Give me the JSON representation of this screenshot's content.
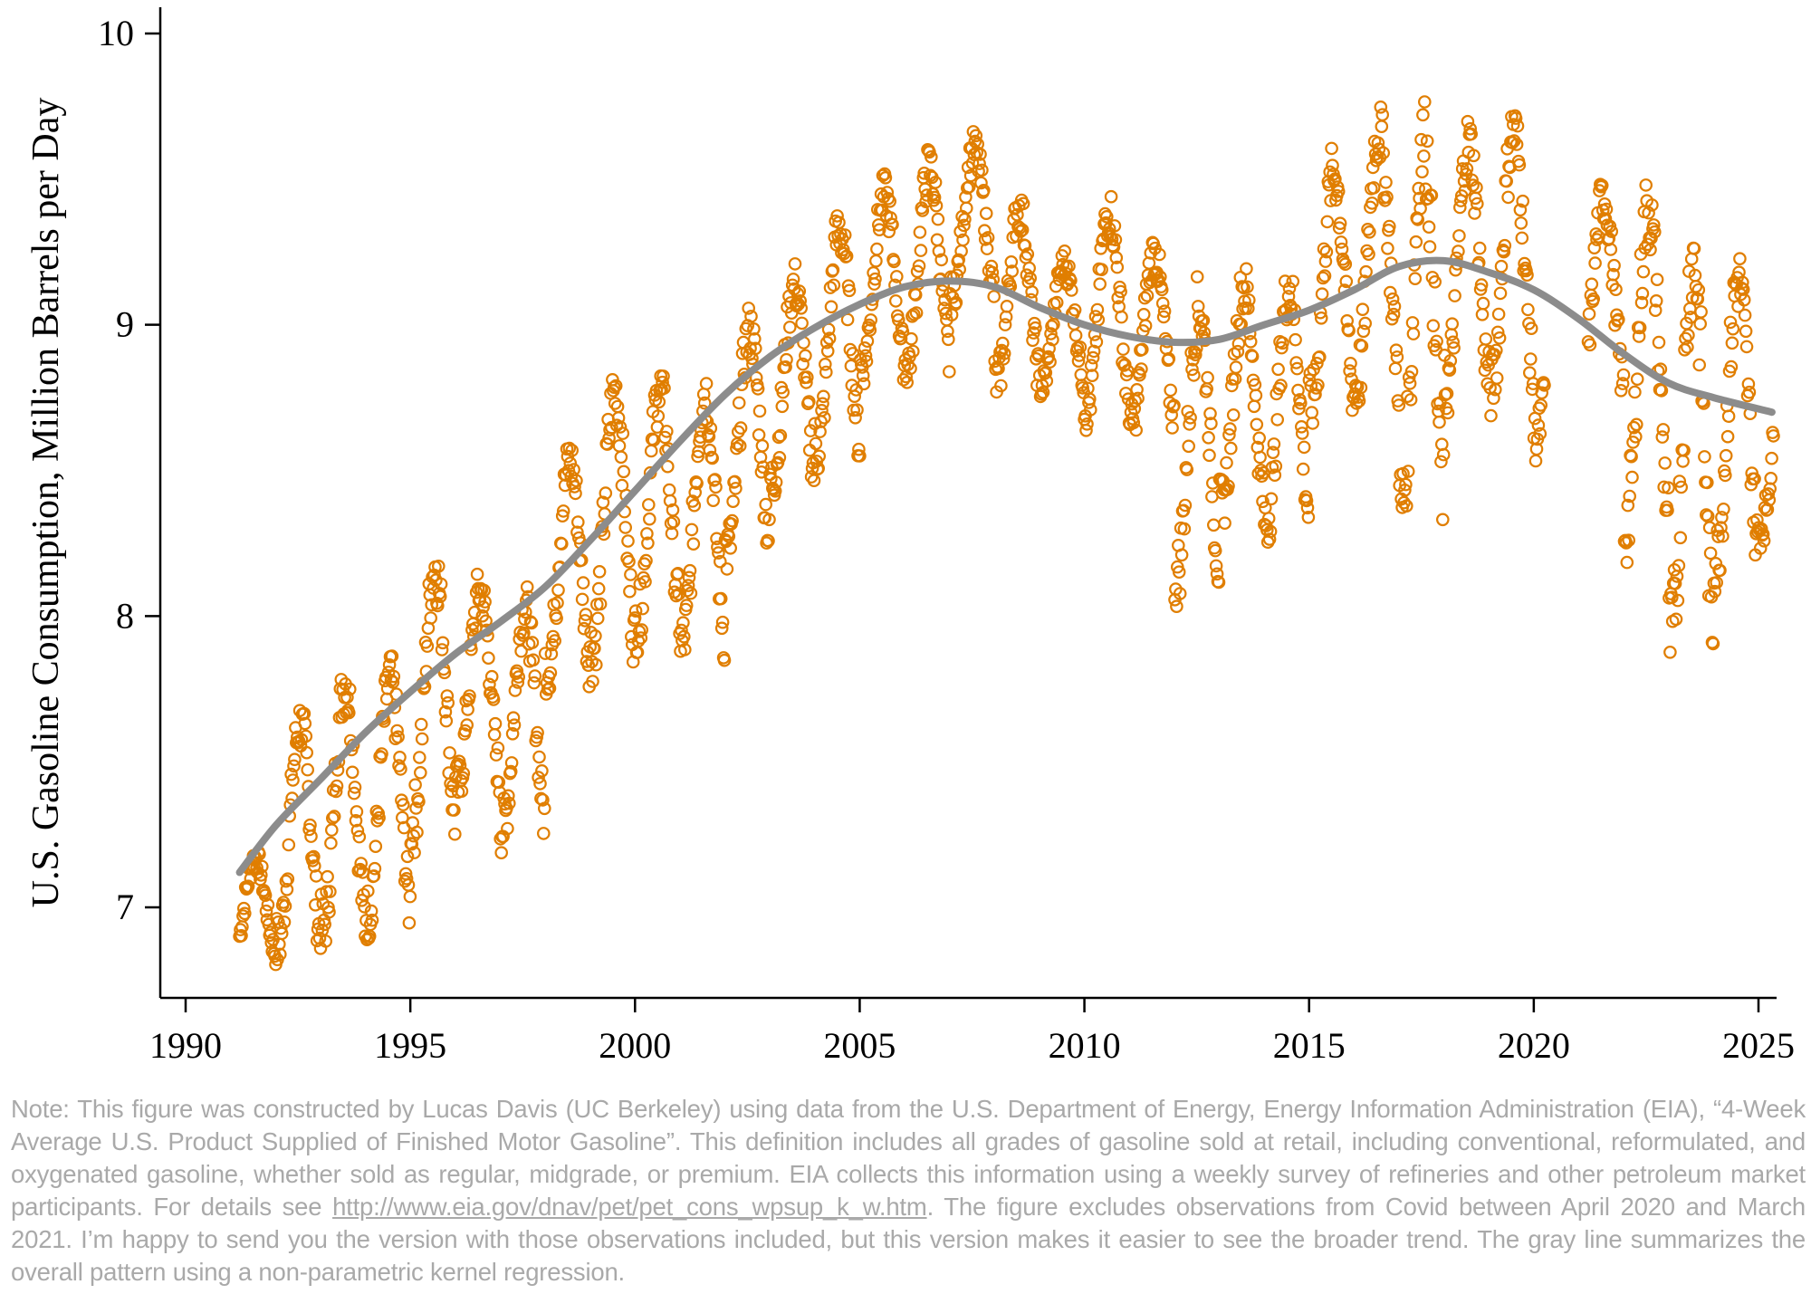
{
  "chart_data": {
    "type": "scatter",
    "title": "",
    "xlabel": "",
    "ylabel": "U.S. Gasoline Consumption, Million Barrels per Day",
    "xlim": [
      1989.5,
      2026.2
    ],
    "ylim": [
      6.65,
      10.15
    ],
    "xticks": [
      1990,
      1995,
      2000,
      2005,
      2010,
      2015,
      2020,
      2025
    ],
    "yticks": [
      7,
      8,
      9,
      10
    ],
    "grid": false,
    "legend": "none",
    "marker_color": "#E07E00",
    "trend_color": "#8C8C8C",
    "scatter_series": {
      "name": "4-Week Average U.S. Product Supplied of Finished Motor Gasoline (weekly)",
      "start": 1991.2,
      "end": 2025.35,
      "excluded_range": [
        2020.25,
        2021.2
      ],
      "yearly_seasonal_range": [
        [
          1991,
          6.8,
          7.2
        ],
        [
          1992,
          6.8,
          7.7
        ],
        [
          1993,
          6.85,
          7.85
        ],
        [
          1994,
          6.9,
          7.85
        ],
        [
          1995,
          7.2,
          8.25
        ],
        [
          1996,
          7.35,
          8.15
        ],
        [
          1997,
          7.2,
          8.1
        ],
        [
          1998,
          7.75,
          8.6
        ],
        [
          1999,
          7.8,
          8.85
        ],
        [
          2000,
          7.9,
          8.85
        ],
        [
          2001,
          7.82,
          8.85
        ],
        [
          2002,
          8.15,
          9.05
        ],
        [
          2003,
          8.4,
          9.2
        ],
        [
          2004,
          8.5,
          9.4
        ],
        [
          2005,
          8.8,
          9.5
        ],
        [
          2006,
          8.8,
          9.6
        ],
        [
          2007,
          9.05,
          9.65
        ],
        [
          2008,
          8.75,
          9.45
        ],
        [
          2009,
          8.75,
          9.25
        ],
        [
          2010,
          8.65,
          9.45
        ],
        [
          2011,
          8.6,
          9.3
        ],
        [
          2012,
          8.05,
          9.15
        ],
        [
          2013,
          8.3,
          9.2
        ],
        [
          2014,
          8.25,
          9.2
        ],
        [
          2015,
          8.65,
          9.6
        ],
        [
          2016,
          8.7,
          9.75
        ],
        [
          2017,
          8.25,
          9.75
        ],
        [
          2018,
          8.7,
          9.7
        ],
        [
          2019,
          8.7,
          9.75
        ],
        [
          2020,
          8.55,
          9.3
        ],
        [
          2021,
          8.7,
          9.5
        ],
        [
          2022,
          8.2,
          9.5
        ],
        [
          2023,
          7.8,
          9.35
        ],
        [
          2024,
          8.1,
          9.25
        ],
        [
          2025,
          8.25,
          8.85
        ]
      ]
    },
    "trend_series": {
      "name": "Non-parametric kernel regression",
      "x": [
        1991.2,
        1992,
        1993,
        1994,
        1995,
        1996,
        1997,
        1998,
        1999,
        2000,
        2001,
        2002,
        2003,
        2004,
        2005,
        2006,
        2007,
        2008,
        2009,
        2010,
        2011,
        2012,
        2013,
        2014,
        2015,
        2016,
        2017,
        2018,
        2019,
        2020,
        2021,
        2022,
        2023,
        2024,
        2025.3
      ],
      "y": [
        7.12,
        7.28,
        7.44,
        7.6,
        7.74,
        7.87,
        7.98,
        8.1,
        8.26,
        8.43,
        8.6,
        8.76,
        8.89,
        8.99,
        9.07,
        9.13,
        9.15,
        9.13,
        9.06,
        9.0,
        8.96,
        8.94,
        8.95,
        9.0,
        9.05,
        9.12,
        9.2,
        9.22,
        9.18,
        9.12,
        9.02,
        8.9,
        8.8,
        8.75,
        8.7
      ]
    }
  },
  "note": {
    "text_before_link": "Note: This figure was constructed by Lucas Davis (UC Berkeley) using data from the U.S. Department of Energy, Energy Information Administration (EIA), “4-Week Average U.S. Product Supplied of Finished Motor Gasoline”. This definition includes all grades of gasoline sold at retail, including conventional, reformulated, and oxygenated gasoline, whether sold as regular, midgrade, or premium. EIA collects this information using a weekly survey of refineries and other petroleum market participants. For details see ",
    "link": "http://www.eia.gov/dnav/pet/pet_cons_wpsup_k_w.htm",
    "text_after_link": ". The figure excludes observations from Covid between April 2020 and March 2021. I’m happy to send you the version with those observations included, but this version makes it easier to see the broader trend. The gray line summarizes the overall pattern using a non-parametric kernel regression."
  }
}
